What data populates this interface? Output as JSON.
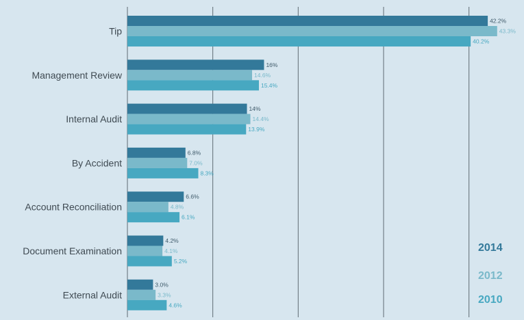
{
  "chart_data": {
    "type": "bar",
    "orientation": "horizontal",
    "categories": [
      "Tip",
      "Management Review",
      "Internal Audit",
      "By Accident",
      "Account Reconciliation",
      "Document Examination",
      "External Audit"
    ],
    "series": [
      {
        "name": "2014",
        "color": "#33799a",
        "values": [
          42.2,
          16,
          14,
          6.8,
          6.6,
          4.2,
          3.0
        ],
        "labels": [
          "42.2%",
          "16%",
          "14%",
          "6.8%",
          "6.6%",
          "4.2%",
          "3.0%"
        ]
      },
      {
        "name": "2012",
        "color": "#7ab9ca",
        "values": [
          43.3,
          14.6,
          14.4,
          7.0,
          4.8,
          4.1,
          3.3
        ],
        "labels": [
          "43.3%",
          "14.6%",
          "14.4%",
          "7.0%",
          "4.8%",
          "4.1%",
          "3.3%"
        ]
      },
      {
        "name": "2010",
        "color": "#47a8c1",
        "values": [
          40.2,
          15.4,
          13.9,
          8.3,
          6.1,
          5.2,
          4.6
        ],
        "labels": [
          "40.2%",
          "15.4%",
          "13.9%",
          "8.3%",
          "6.1%",
          "5.2%",
          "4.6%"
        ]
      }
    ],
    "xlim": [
      0,
      45
    ],
    "grid": true,
    "legend": "bottom-right",
    "title": "",
    "xlabel": "",
    "ylabel": ""
  }
}
